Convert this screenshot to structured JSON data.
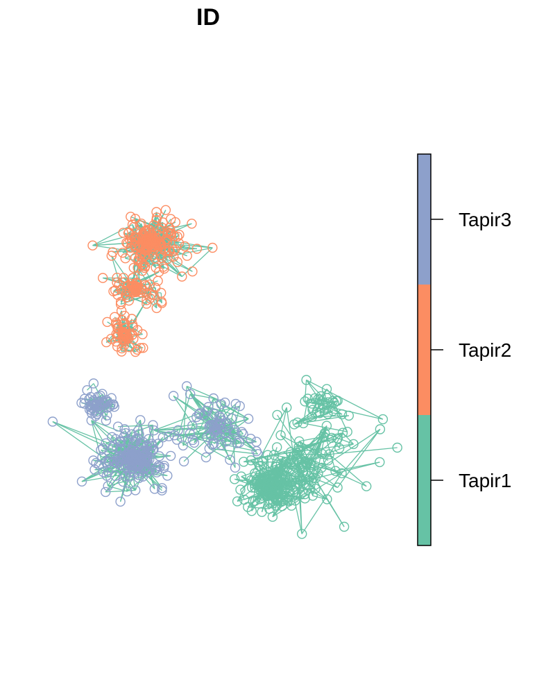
{
  "chart_data": {
    "type": "scatter",
    "title": "ID",
    "xlabel": "",
    "ylabel": "",
    "axes_shown": false,
    "grid": false,
    "marker": "hollow-circle",
    "connected_by_lines": true,
    "legend": {
      "type": "colorbar",
      "placement": "right",
      "entries": [
        {
          "name": "Tapir3",
          "color": "#8DA0CB"
        },
        {
          "name": "Tapir2",
          "color": "#FC8D62"
        },
        {
          "name": "Tapir1",
          "color": "#66C2A5"
        }
      ]
    },
    "series": [
      {
        "name": "Tapir2",
        "color": "#FC8D62",
        "clusters": [
          {
            "cx": 0.22,
            "cy": 0.71,
            "spread": 0.06,
            "n": 180
          },
          {
            "cx": 0.18,
            "cy": 0.52,
            "spread": 0.04,
            "n": 70
          },
          {
            "cx": 0.15,
            "cy": 0.33,
            "spread": 0.04,
            "n": 60
          }
        ]
      },
      {
        "name": "Tapir3",
        "color": "#8DA0CB",
        "clusters": [
          {
            "cx": 0.17,
            "cy": -0.18,
            "spread": 0.06,
            "n": 200
          },
          {
            "cx": 0.08,
            "cy": 0.04,
            "spread": 0.03,
            "n": 50
          },
          {
            "cx": 0.38,
            "cy": -0.05,
            "spread": 0.08,
            "n": 70
          }
        ]
      },
      {
        "name": "Tapir1",
        "color": "#66C2A5",
        "clusters": [
          {
            "cx": 0.53,
            "cy": -0.3,
            "spread": 0.05,
            "n": 150
          },
          {
            "cx": 0.62,
            "cy": -0.2,
            "spread": 0.11,
            "n": 60
          },
          {
            "cx": 0.66,
            "cy": 0.04,
            "spread": 0.06,
            "n": 30
          }
        ]
      }
    ],
    "xlim": [
      -0.1,
      0.85
    ],
    "ylim": [
      -0.75,
      1.25
    ]
  }
}
